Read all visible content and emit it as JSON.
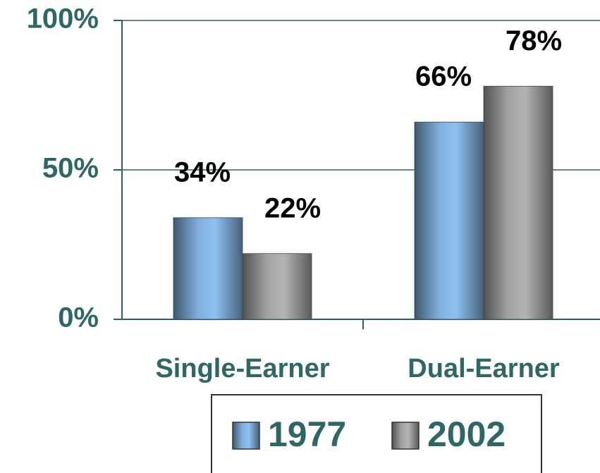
{
  "chart_data": {
    "type": "bar",
    "categories": [
      "Single-Earner",
      "Dual-Earner"
    ],
    "series": [
      {
        "name": "1977",
        "color": "#8ec1f2",
        "values": [
          34,
          66
        ],
        "value_labels": [
          "34%",
          "66%"
        ]
      },
      {
        "name": "2002",
        "color": "#b4b4b4",
        "values": [
          22,
          78
        ],
        "value_labels": [
          "22%",
          "78%"
        ]
      }
    ],
    "ylim": [
      0,
      100
    ],
    "yticks": [
      {
        "value": 0,
        "label": "0%"
      },
      {
        "value": 50,
        "label": "50%"
      },
      {
        "value": 100,
        "label": "100%"
      }
    ],
    "grid": true
  }
}
